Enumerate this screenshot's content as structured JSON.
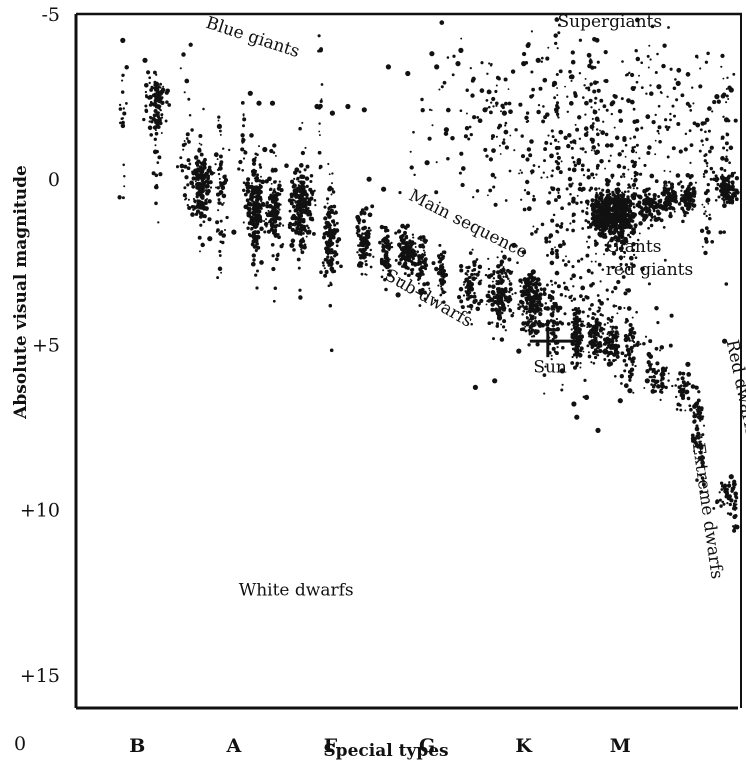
{
  "chart_data": {
    "type": "scatter",
    "title": "",
    "xlabel": "Special types",
    "ylabel": "Absolute visual magnitude",
    "x_corner_label": "0",
    "categories": [
      "B",
      "A",
      "F",
      "G",
      "K",
      "M"
    ],
    "y_ticks": [
      {
        "value": -5,
        "label": "-5"
      },
      {
        "value": 0,
        "label": "0"
      },
      {
        "value": 5,
        "label": "+5"
      },
      {
        "value": 10,
        "label": "+10"
      },
      {
        "value": 15,
        "label": "+15"
      }
    ],
    "ylim": [
      -5,
      16
    ],
    "x_range": [
      0,
      6.45
    ],
    "y_inverted": true,
    "grid": false,
    "point_color": "#111111",
    "regions": [
      {
        "label": "Blue giants",
        "x": 0.9,
        "y": -4.6,
        "rotate": 18
      },
      {
        "label": "Supergiants",
        "x": 4.55,
        "y": -4.6,
        "rotate": 0
      },
      {
        "label": "Main sequence",
        "x": 3.0,
        "y": 0.6,
        "rotate": 27
      },
      {
        "label": "Giants",
        "x": 5.05,
        "y": 2.2,
        "rotate": 0
      },
      {
        "label": "red giants",
        "x": 5.05,
        "y": 2.9,
        "rotate": 0
      },
      {
        "label": "Sub-dwarfs",
        "x": 2.75,
        "y": 3.0,
        "rotate": 30
      },
      {
        "label": "Sun",
        "x": 4.3,
        "y": 5.85,
        "rotate": 0
      },
      {
        "label": "Red dwarfs",
        "x": 6.3,
        "y": 4.9,
        "rotate": 78
      },
      {
        "label": "Extreme dwarfs",
        "x": 5.95,
        "y": 8.0,
        "rotate": 82
      },
      {
        "label": "White dwarfs",
        "x": 1.25,
        "y": 12.6,
        "rotate": 0
      }
    ],
    "series": [
      {
        "clusters": [
          {
            "x": 0.05,
            "y": -2.0,
            "sx": 0.02,
            "sy": 1.3,
            "n": 20
          },
          {
            "x": 0.4,
            "y": -2.3,
            "sx": 0.05,
            "sy": 0.4,
            "n": 110
          },
          {
            "x": 0.4,
            "y": -1.2,
            "sx": 0.02,
            "sy": 0.9,
            "n": 25
          },
          {
            "x": 0.7,
            "y": -1.0,
            "sx": 0.03,
            "sy": 1.3,
            "n": 30
          },
          {
            "x": 0.86,
            "y": 0.2,
            "sx": 0.05,
            "sy": 0.5,
            "n": 150
          },
          {
            "x": 0.86,
            "y": 0.6,
            "sx": 0.02,
            "sy": 1.2,
            "n": 40
          },
          {
            "x": 1.07,
            "y": 0.4,
            "sx": 0.03,
            "sy": 1.1,
            "n": 60
          },
          {
            "x": 1.3,
            "y": -0.4,
            "sx": 0.02,
            "sy": 1.3,
            "n": 25
          },
          {
            "x": 1.42,
            "y": 0.8,
            "sx": 0.04,
            "sy": 0.6,
            "n": 170
          },
          {
            "x": 1.42,
            "y": 1.2,
            "sx": 0.02,
            "sy": 1.2,
            "n": 40
          },
          {
            "x": 1.62,
            "y": 1.0,
            "sx": 0.04,
            "sy": 0.5,
            "n": 120
          },
          {
            "x": 1.62,
            "y": 0.9,
            "sx": 0.02,
            "sy": 1.2,
            "n": 30
          },
          {
            "x": 1.9,
            "y": 0.9,
            "sx": 0.06,
            "sy": 0.55,
            "n": 200
          },
          {
            "x": 1.9,
            "y": 1.2,
            "sx": 0.02,
            "sy": 1.3,
            "n": 40
          },
          {
            "x": 2.1,
            "y": -2.0,
            "sx": 0.01,
            "sy": 1.5,
            "n": 18
          },
          {
            "x": 2.2,
            "y": 1.8,
            "sx": 0.04,
            "sy": 0.6,
            "n": 120
          },
          {
            "x": 2.2,
            "y": 1.6,
            "sx": 0.02,
            "sy": 1.2,
            "n": 30
          },
          {
            "x": 2.55,
            "y": 1.9,
            "sx": 0.04,
            "sy": 0.5,
            "n": 90
          },
          {
            "x": 2.78,
            "y": 2.2,
            "sx": 0.03,
            "sy": 0.4,
            "n": 60
          },
          {
            "x": 3.0,
            "y": 2.2,
            "sx": 0.05,
            "sy": 0.35,
            "n": 120
          },
          {
            "x": 3.15,
            "y": 2.6,
            "sx": 0.03,
            "sy": 0.5,
            "n": 60
          },
          {
            "x": 3.35,
            "y": 2.9,
            "sx": 0.03,
            "sy": 0.5,
            "n": 50
          },
          {
            "x": 3.65,
            "y": 3.3,
            "sx": 0.05,
            "sy": 0.5,
            "n": 80
          },
          {
            "x": 3.95,
            "y": 3.5,
            "sx": 0.06,
            "sy": 0.5,
            "n": 150
          },
          {
            "x": 4.28,
            "y": 3.8,
            "sx": 0.06,
            "sy": 0.45,
            "n": 200
          },
          {
            "x": 4.5,
            "y": 4.2,
            "sx": 0.03,
            "sy": 0.6,
            "n": 60
          },
          {
            "x": 4.75,
            "y": 4.8,
            "sx": 0.03,
            "sy": 0.5,
            "n": 100
          },
          {
            "x": 4.95,
            "y": 4.7,
            "sx": 0.04,
            "sy": 0.35,
            "n": 90
          },
          {
            "x": 5.1,
            "y": 5.0,
            "sx": 0.04,
            "sy": 0.3,
            "n": 80
          },
          {
            "x": 5.3,
            "y": 5.2,
            "sx": 0.03,
            "sy": 0.5,
            "n": 50
          },
          {
            "x": 4.55,
            "y": -0.7,
            "sx": 0.01,
            "sy": 2.2,
            "n": 30
          },
          {
            "x": 4.92,
            "y": -2.0,
            "sx": 0.04,
            "sy": 1.1,
            "n": 40
          },
          {
            "x": 5.0,
            "y": 1.1,
            "sx": 0.05,
            "sy": 0.35,
            "n": 180
          },
          {
            "x": 5.1,
            "y": 1.0,
            "sx": 0.1,
            "sy": 0.28,
            "n": 150
          },
          {
            "x": 5.2,
            "y": 1.1,
            "sx": 0.07,
            "sy": 0.45,
            "n": 220
          },
          {
            "x": 5.2,
            "y": 1.6,
            "sx": 0.03,
            "sy": 0.9,
            "n": 50
          },
          {
            "x": 5.35,
            "y": 0.5,
            "sx": 0.02,
            "sy": 1.4,
            "n": 40
          },
          {
            "x": 5.5,
            "y": 0.9,
            "sx": 0.06,
            "sy": 0.25,
            "n": 100
          },
          {
            "x": 5.72,
            "y": 0.6,
            "sx": 0.05,
            "sy": 0.25,
            "n": 80
          },
          {
            "x": 5.9,
            "y": 0.6,
            "sx": 0.04,
            "sy": 0.3,
            "n": 70
          },
          {
            "x": 6.1,
            "y": 0.4,
            "sx": 0.03,
            "sy": 1.0,
            "n": 40
          },
          {
            "x": 6.3,
            "y": 0.3,
            "sx": 0.06,
            "sy": 0.25,
            "n": 100
          },
          {
            "x": 6.28,
            "y": -1.0,
            "sx": 0.03,
            "sy": 1.4,
            "n": 30
          },
          {
            "x": 5.6,
            "y": 5.9,
            "sx": 0.06,
            "sy": 0.4,
            "n": 60
          },
          {
            "x": 5.85,
            "y": 6.4,
            "sx": 0.04,
            "sy": 0.3,
            "n": 40
          },
          {
            "x": 6.0,
            "y": 7.4,
            "sx": 0.03,
            "sy": 0.6,
            "n": 50
          },
          {
            "x": 6.05,
            "y": 8.2,
            "sx": 0.015,
            "sy": 0.6,
            "n": 20
          },
          {
            "x": 6.35,
            "y": 9.5,
            "sx": 0.08,
            "sy": 0.25,
            "n": 50
          },
          {
            "x": 6.45,
            "y": 10.5,
            "sx": 0.05,
            "sy": 0.4,
            "n": 35
          },
          {
            "x": 6.5,
            "y": 12.0,
            "sx": 0.02,
            "sy": 0.8,
            "n": 10
          },
          {
            "x": 4.8,
            "y": 0.0,
            "sx": 0.35,
            "sy": 2.2,
            "n": 350
          },
          {
            "x": 3.8,
            "y": -1.5,
            "sx": 0.35,
            "sy": 1.6,
            "n": 120
          },
          {
            "x": 5.7,
            "y": -1.8,
            "sx": 0.4,
            "sy": 1.4,
            "n": 110
          },
          {
            "x": 5.0,
            "y": 4.5,
            "sx": 0.35,
            "sy": 1.0,
            "n": 90
          }
        ],
        "points": [
          [
            0.05,
            -4.2
          ],
          [
            0.28,
            -3.6
          ],
          [
            1.05,
            -1.6
          ],
          [
            1.37,
            -2.6
          ],
          [
            1.46,
            -2.3
          ],
          [
            1.52,
            -0.9
          ],
          [
            1.6,
            -2.3
          ],
          [
            2.06,
            -2.2
          ],
          [
            2.22,
            -2.0
          ],
          [
            2.38,
            -2.2
          ],
          [
            2.55,
            -2.1
          ],
          [
            2.8,
            -3.4
          ],
          [
            3.0,
            -3.2
          ],
          [
            3.25,
            -3.8
          ],
          [
            3.3,
            -3.4
          ],
          [
            3.52,
            -3.5
          ],
          [
            3.55,
            -3.9
          ],
          [
            3.8,
            -2.1
          ],
          [
            4.0,
            -2.0
          ],
          [
            3.4,
            -1.5
          ],
          [
            3.2,
            -0.5
          ],
          [
            4.2,
            -3.5
          ],
          [
            4.35,
            -3.6
          ],
          [
            4.52,
            -2.9
          ],
          [
            4.7,
            -3.1
          ],
          [
            5.6,
            -2.8
          ],
          [
            5.8,
            -2.9
          ],
          [
            6.2,
            -2.5
          ],
          [
            6.35,
            -2.7
          ],
          [
            6.3,
            -1.8
          ],
          [
            4.1,
            2.0
          ],
          [
            4.3,
            2.8
          ],
          [
            4.6,
            5.8
          ],
          [
            4.72,
            6.8
          ],
          [
            4.75,
            7.2
          ],
          [
            4.85,
            6.6
          ],
          [
            4.97,
            7.6
          ],
          [
            5.2,
            6.7
          ],
          [
            5.3,
            6.4
          ],
          [
            5.48,
            6.1
          ],
          [
            5.9,
            5.6
          ],
          [
            6.28,
            4.9
          ],
          [
            6.35,
            9.0
          ],
          [
            6.5,
            9.8
          ],
          [
            6.6,
            10.6
          ],
          [
            6.6,
            11.6
          ],
          [
            6.65,
            12.6
          ],
          [
            4.3,
            4.4
          ],
          [
            3.95,
            4.2
          ],
          [
            4.15,
            5.2
          ],
          [
            3.7,
            6.3
          ],
          [
            3.9,
            6.1
          ],
          [
            2.9,
            3.5
          ],
          [
            2.5,
            2.6
          ],
          [
            1.8,
            2.0
          ],
          [
            1.2,
            1.6
          ],
          [
            0.95,
            1.8
          ],
          [
            2.6,
            0.0
          ],
          [
            2.75,
            0.3
          ]
        ],
        "sun_marker": {
          "x": 4.45,
          "y": 4.9
        }
      }
    ]
  }
}
